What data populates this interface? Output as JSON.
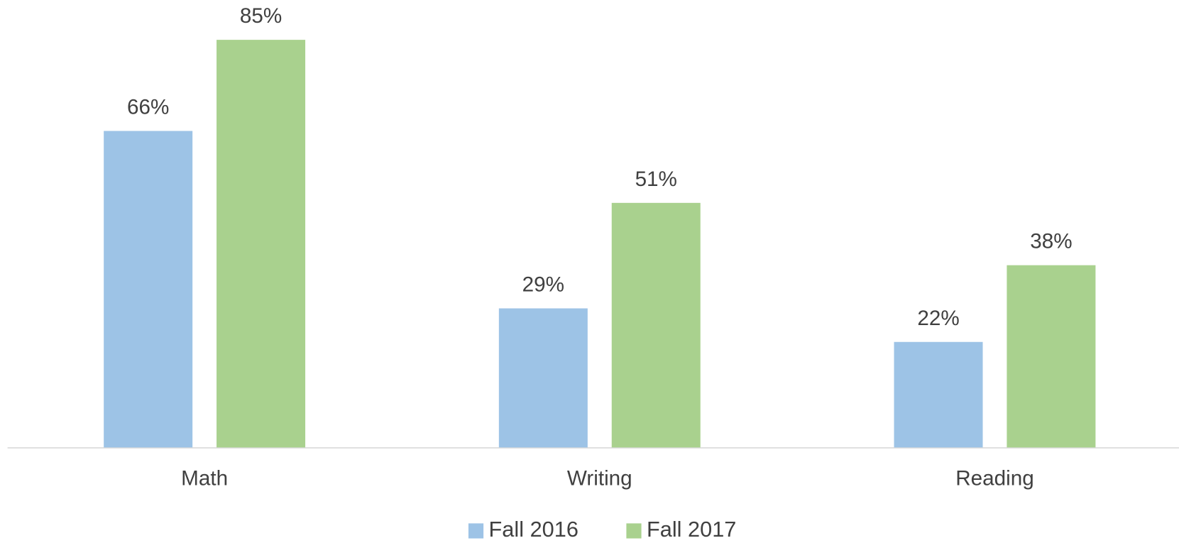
{
  "chart_data": {
    "type": "bar",
    "categories": [
      "Math",
      "Writing",
      "Reading"
    ],
    "series": [
      {
        "name": "Fall 2016",
        "color": "#9dc3e6",
        "values": [
          66,
          29,
          22
        ],
        "value_labels": [
          "66%",
          "29%",
          "22%"
        ]
      },
      {
        "name": "Fall 2017",
        "color": "#a9d18e",
        "values": [
          85,
          51,
          38
        ],
        "value_labels": [
          "85%",
          "51%",
          "38%"
        ]
      }
    ],
    "ylim": [
      0,
      90
    ],
    "grid": false,
    "legend": "bottom"
  }
}
